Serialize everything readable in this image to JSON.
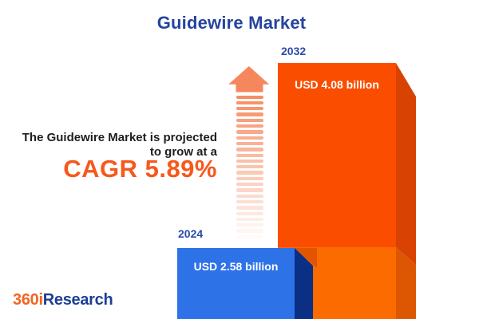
{
  "title": "Guidewire Market",
  "annotation": {
    "line1": "The Guidewire Market is projected",
    "line2": "to grow at a",
    "cagr": "CAGR 5.89%"
  },
  "logo": {
    "prefix": "360i",
    "suffix": "Research"
  },
  "chart_data": {
    "type": "bar",
    "title": "Guidewire Market",
    "categories": [
      "2024",
      "2032"
    ],
    "values": [
      2.58,
      4.08
    ],
    "unit": "USD billion",
    "value_labels": [
      "USD 2.58 billion",
      "USD 4.08 billion"
    ],
    "cagr_percent": 5.89,
    "annotation": "The Guidewire Market is projected to grow at a CAGR 5.89%",
    "orientation": "vertical",
    "legend": "none",
    "bar_style": "3d"
  },
  "colors": {
    "background": "#FFFFFF",
    "title_blue": "#26449E",
    "year_label_blue": "#2B4AA8",
    "text_dark": "#1E1E1E",
    "cagr_orange": "#F6581C",
    "bar_2032_front_upper": "#FB4D00",
    "bar_2032_front_lower": "#FC6B00",
    "bar_2032_side_upper": "#D84202",
    "bar_2032_side_lower": "#DD5602",
    "bar_2024_front": "#2E72E8",
    "bar_2024_side": "#0A2F85",
    "bar_shadow": "#E25400",
    "arrow_orange": "#F6875C",
    "logo_orange": "#F26522",
    "logo_blue": "#1C3E94",
    "value_text": "#FFFFFF"
  }
}
